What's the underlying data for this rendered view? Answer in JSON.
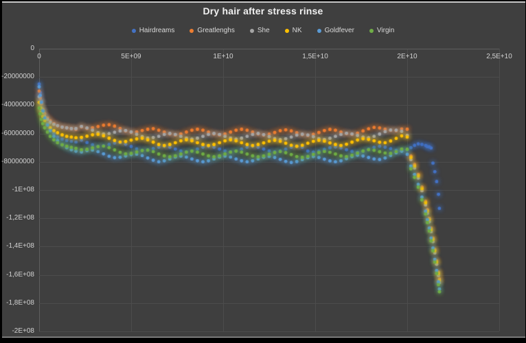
{
  "chart": {
    "title": "Dry hair after stress rinse"
  },
  "colors": {
    "page_bg": "#000000",
    "panel_bg": "#3F3F3F",
    "panel_border": "#C8C8C8",
    "grid": "#4C4C4C",
    "plot_edge": "#5F5F5F",
    "axis_text": "#D2D2D2",
    "title_text": "#F1F1F1",
    "legend_text": "#D9D9D9"
  },
  "chart_data": {
    "type": "scatter",
    "title": "Dry hair after stress rinse",
    "xlabel": "",
    "ylabel": "",
    "legend_position": "top",
    "grid": true,
    "x_range": [
      0,
      25000000000.0
    ],
    "y_range": [
      -200000000.0,
      0
    ],
    "x_ticks": [
      {
        "value": 0,
        "label": "0"
      },
      {
        "value": 5000000000.0,
        "label": "5E+09"
      },
      {
        "value": 10000000000.0,
        "label": "1E+10"
      },
      {
        "value": 15000000000.0,
        "label": "1,5E+10"
      },
      {
        "value": 20000000000.0,
        "label": "2E+10"
      },
      {
        "value": 25000000000.0,
        "label": "2,5E+10"
      }
    ],
    "y_ticks": [
      {
        "value": 0,
        "label": "0"
      },
      {
        "value": -20000000.0,
        "label": "-20000000"
      },
      {
        "value": -40000000.0,
        "label": "-40000000"
      },
      {
        "value": -60000000.0,
        "label": "-60000000"
      },
      {
        "value": -80000000.0,
        "label": "-80000000"
      },
      {
        "value": -100000000.0,
        "label": "-1E+08"
      },
      {
        "value": -120000000.0,
        "label": "-1,2E+08"
      },
      {
        "value": -140000000.0,
        "label": "-1,4E+08"
      },
      {
        "value": -160000000.0,
        "label": "-1,6E+08"
      },
      {
        "value": -180000000.0,
        "label": "-1,8E+08"
      },
      {
        "value": -200000000.0,
        "label": "-2E+08"
      }
    ],
    "x_unit": 1000000000.0,
    "y_unit": 1000000.0,
    "x": [
      0,
      0.06,
      0.12,
      0.2,
      0.3,
      0.45,
      0.6,
      0.8,
      1.0,
      1.25,
      1.5,
      1.75,
      2.0,
      2.3,
      2.6,
      2.9,
      3.2,
      3.5,
      3.8,
      4.1,
      4.4,
      4.7,
      5.0,
      5.3,
      5.6,
      5.9,
      6.2,
      6.5,
      6.8,
      7.1,
      7.4,
      7.7,
      8.0,
      8.3,
      8.6,
      8.9,
      9.2,
      9.5,
      9.8,
      10.1,
      10.4,
      10.7,
      11.0,
      11.3,
      11.6,
      11.9,
      12.2,
      12.5,
      12.8,
      13.1,
      13.4,
      13.7,
      14.0,
      14.3,
      14.6,
      14.9,
      15.2,
      15.5,
      15.8,
      16.1,
      16.4,
      16.7,
      17.0,
      17.3,
      17.6,
      17.9,
      18.2,
      18.5,
      18.8,
      19.1,
      19.4,
      19.7,
      20.0,
      20.2,
      20.4,
      20.6,
      20.8,
      21.0,
      21.1,
      21.2,
      21.3,
      21.4,
      21.5,
      21.6,
      21.7,
      21.75
    ],
    "series": [
      {
        "name": "Hairdreams",
        "color": "#4472C4",
        "y": [
          -25,
          -31,
          -37,
          -43,
          -48,
          -53,
          -57,
          -60,
          -62.5,
          -64,
          -65,
          -65.5,
          -66,
          -64.7,
          -66.4,
          -68.0,
          -69.1,
          -68.7,
          -67.8,
          -66.8,
          -66.5,
          -67.6,
          -69.2,
          -70.9,
          -71.9,
          -71.6,
          -70.6,
          -69.7,
          -69.0,
          -69.7,
          -71.0,
          -72.3,
          -73.0,
          -72.3,
          -71.0,
          -69.7,
          -69.0,
          -69.7,
          -71.0,
          -72.3,
          -73.0,
          -72.3,
          -71.0,
          -69.7,
          -69.0,
          -69.7,
          -71.0,
          -72.3,
          -73.0,
          -72.3,
          -71.0,
          -69.7,
          -69.0,
          -69.7,
          -72.4,
          -73.2,
          -72.6,
          -71.3,
          -70.1,
          -69.5,
          -70.2,
          -71.5,
          -72.7,
          -73.3,
          -72.6,
          -71.2,
          -69.8,
          -69.0,
          -69.7,
          -70.8,
          -71.9,
          -72.4,
          -71.5,
          -70.0,
          -68.4,
          -67.4,
          -67.7,
          -68.5,
          -69.3,
          -69.5,
          -70.3,
          -81,
          -87,
          -94,
          -103,
          -113,
          -119,
          -125,
          -132,
          -139,
          -147,
          -155,
          -163,
          -168
        ]
      },
      {
        "name": "Greatlenghs",
        "color": "#ED7D31",
        "y": [
          -30,
          -35,
          -39,
          -43,
          -46,
          -49,
          -51,
          -53,
          -54.5,
          -55.5,
          -56,
          -56.5,
          -57,
          -55.3,
          -56.4,
          -56.0,
          -55.1,
          -54.1,
          -53.8,
          -54.8,
          -56.5,
          -58.2,
          -59.2,
          -58.9,
          -57.9,
          -57.0,
          -56.6,
          -57.7,
          -59.0,
          -60.3,
          -61.0,
          -60.3,
          -59.0,
          -57.7,
          -57.0,
          -57.7,
          -59.0,
          -60.3,
          -61.0,
          -60.3,
          -59.0,
          -57.7,
          -57.0,
          -57.7,
          -59.0,
          -60.3,
          -61.1,
          -60.5,
          -59.3,
          -58.0,
          -57.4,
          -58.2,
          -59.5,
          -60.8,
          -61.4,
          -60.6,
          -59.3,
          -57.9,
          -57.1,
          -57.7,
          -59.0,
          -60.1,
          -60.6,
          -59.7,
          -58.2,
          -56.7,
          -55.7,
          -56.1,
          -57.0,
          -57.8,
          -58.0,
          -56.8,
          -57.0,
          -76,
          -82,
          -89,
          -98,
          -108,
          -114,
          -120,
          -127,
          -134,
          -142,
          -150,
          -158,
          -163
        ]
      },
      {
        "name": "She",
        "color": "#A5A5A5",
        "y": [
          -34,
          -38,
          -42,
          -45,
          -48,
          -50,
          -52,
          -53.5,
          -54.5,
          -55.5,
          -56,
          -56.5,
          -56.5,
          -55.0,
          -56.1,
          -57.7,
          -59.4,
          -60.4,
          -60.1,
          -59.1,
          -58.2,
          -57.9,
          -58.9,
          -60.6,
          -62.2,
          -63.3,
          -62.9,
          -62.0,
          -60.7,
          -60.0,
          -60.7,
          -62.0,
          -63.3,
          -64.0,
          -63.3,
          -62.0,
          -60.7,
          -60.0,
          -60.7,
          -62.0,
          -63.3,
          -64.0,
          -63.3,
          -62.0,
          -60.7,
          -60.0,
          -60.8,
          -62.2,
          -63.6,
          -64.3,
          -63.7,
          -62.5,
          -61.2,
          -60.5,
          -61.1,
          -62.3,
          -63.6,
          -64.2,
          -63.4,
          -62.0,
          -60.7,
          -59.8,
          -60.3,
          -61.4,
          -62.5,
          -63.0,
          -62.0,
          -60.4,
          -58.7,
          -57.5,
          -57.7,
          -58.5,
          -61.3,
          -78.5,
          -84.5,
          -91.5,
          -100.5,
          -110.5,
          -116.5,
          -122.5,
          -129.5,
          -136.5,
          -144.5,
          -152.5,
          -160.5,
          -165.5
        ]
      },
      {
        "name": "NK",
        "color": "#FFC000",
        "y": [
          -38,
          -42,
          -45,
          -48,
          -51,
          -54,
          -56,
          -58,
          -59.5,
          -61,
          -62,
          -62.5,
          -63,
          -62.8,
          -61.9,
          -60.9,
          -60.6,
          -61.6,
          -63.3,
          -64.9,
          -66.0,
          -65.7,
          -64.7,
          -63.8,
          -63.4,
          -64.5,
          -66.1,
          -67.8,
          -68.5,
          -67.8,
          -66.5,
          -65.2,
          -64.5,
          -65.2,
          -66.5,
          -67.8,
          -68.5,
          -67.8,
          -66.5,
          -65.2,
          -64.5,
          -65.2,
          -66.5,
          -67.8,
          -68.5,
          -67.8,
          -66.6,
          -65.4,
          -64.8,
          -65.5,
          -66.9,
          -68.3,
          -69.0,
          -68.3,
          -66.9,
          -65.5,
          -64.8,
          -65.4,
          -66.6,
          -67.8,
          -68.5,
          -67.6,
          -66.1,
          -64.6,
          -63.7,
          -64.2,
          -65.2,
          -66.2,
          -66.5,
          -65.3,
          -63.5,
          -61.7,
          -62.5,
          -77,
          -83,
          -90,
          -99,
          -109,
          -115,
          -121,
          -128,
          -135,
          -143,
          -151,
          -159,
          -164
        ]
      },
      {
        "name": "Goldfever",
        "color": "#5B9BD5",
        "y": [
          -27,
          -33,
          -38,
          -44,
          -49,
          -54,
          -58,
          -62,
          -65,
          -68,
          -70,
          -71.5,
          -72.5,
          -73.0,
          -72.1,
          -71.7,
          -72.8,
          -74.4,
          -76.1,
          -77.1,
          -76.8,
          -75.9,
          -74.9,
          -74.6,
          -75.6,
          -77.3,
          -78.9,
          -80.0,
          -79.3,
          -78.0,
          -76.7,
          -76.0,
          -76.7,
          -78.0,
          -79.3,
          -80.0,
          -79.3,
          -78.0,
          -76.7,
          -76.0,
          -76.7,
          -78.0,
          -79.3,
          -80.0,
          -79.3,
          -78.0,
          -76.8,
          -76.2,
          -77.0,
          -78.3,
          -79.7,
          -80.5,
          -79.8,
          -78.5,
          -77.1,
          -76.3,
          -77.0,
          -78.2,
          -79.4,
          -80.0,
          -79.3,
          -77.8,
          -76.3,
          -75.4,
          -75.9,
          -77.0,
          -78.0,
          -78.4,
          -77.3,
          -75.5,
          -73.7,
          -72.5,
          -74.7,
          -83,
          -89,
          -96,
          -105,
          -115,
          -121,
          -127,
          -134,
          -141,
          -149,
          -157,
          -165,
          -170
        ]
      },
      {
        "name": "Virgin",
        "color": "#70AD47",
        "y": [
          -42,
          -46,
          -50,
          -53,
          -56,
          -59,
          -62,
          -64.5,
          -66.5,
          -68,
          -69,
          -69.8,
          -70.5,
          -71.5,
          -71.2,
          -70.2,
          -69.3,
          -68.9,
          -70.0,
          -71.6,
          -73.3,
          -74.4,
          -74.0,
          -73.1,
          -72.1,
          -71.8,
          -72.8,
          -74.5,
          -75.8,
          -76.5,
          -75.8,
          -74.5,
          -73.2,
          -72.5,
          -73.2,
          -74.5,
          -75.8,
          -76.5,
          -75.8,
          -74.5,
          -73.2,
          -72.5,
          -73.2,
          -74.5,
          -75.8,
          -76.5,
          -75.9,
          -74.7,
          -73.5,
          -72.8,
          -73.6,
          -74.9,
          -76.3,
          -76.9,
          -76.2,
          -74.8,
          -73.5,
          -72.7,
          -73.3,
          -74.5,
          -75.8,
          -76.3,
          -75.4,
          -73.9,
          -72.4,
          -71.5,
          -71.9,
          -72.9,
          -73.8,
          -74.0,
          -72.8,
          -71.0,
          -71.2,
          -85,
          -91,
          -98,
          -107,
          -117,
          -123,
          -129,
          -136,
          -143,
          -151,
          -159,
          -167,
          -172
        ]
      }
    ]
  }
}
